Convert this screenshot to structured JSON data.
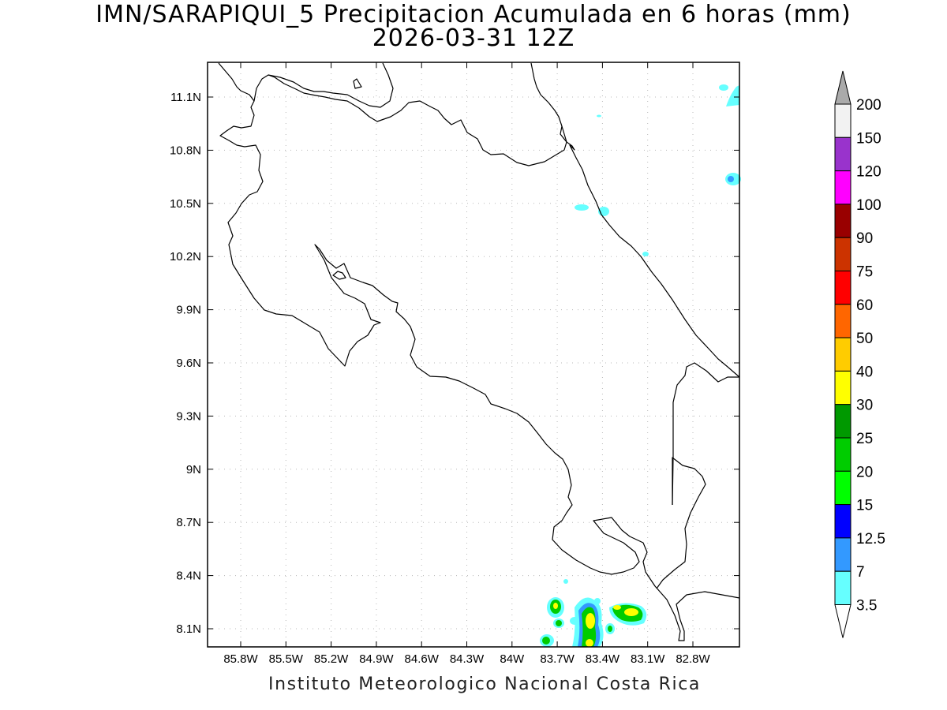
{
  "title_line1": "IMN/SARAPIQUI_5 Precipitacion Acumulada en 6 horas (mm)",
  "title_line2": "2026-03-31 12Z",
  "credit": "Instituto Meteorologico Nacional Costa Rica",
  "map": {
    "lat_ticks": [
      "11.1N",
      "10.8N",
      "10.5N",
      "10.2N",
      "9.9N",
      "9.6N",
      "9.3N",
      "9N",
      "8.7N",
      "8.4N",
      "8.1N"
    ],
    "lon_ticks": [
      "85.8W",
      "85.5W",
      "85.2W",
      "84.9W",
      "84.6W",
      "84.3W",
      "84W",
      "83.7W",
      "83.4W",
      "83.1W",
      "82.8W"
    ],
    "grid": true,
    "coastline_color": "#000000"
  },
  "colorbar": {
    "labels": [
      "200",
      "150",
      "120",
      "100",
      "90",
      "75",
      "60",
      "50",
      "40",
      "30",
      "25",
      "20",
      "15",
      "12.5",
      "7",
      "3.5"
    ],
    "colors_top_to_bottom": [
      "#f2f2f2",
      "#9933cc",
      "#ff00ff",
      "#990000",
      "#cc3300",
      "#ff0000",
      "#ff6600",
      "#ffcc00",
      "#ffff00",
      "#009900",
      "#00cc00",
      "#00ff00",
      "#0000ff",
      "#3399ff",
      "#66ffff"
    ],
    "over_arrow_color": "#aaaaaa",
    "under_arrow_color": "#ffffff"
  }
}
